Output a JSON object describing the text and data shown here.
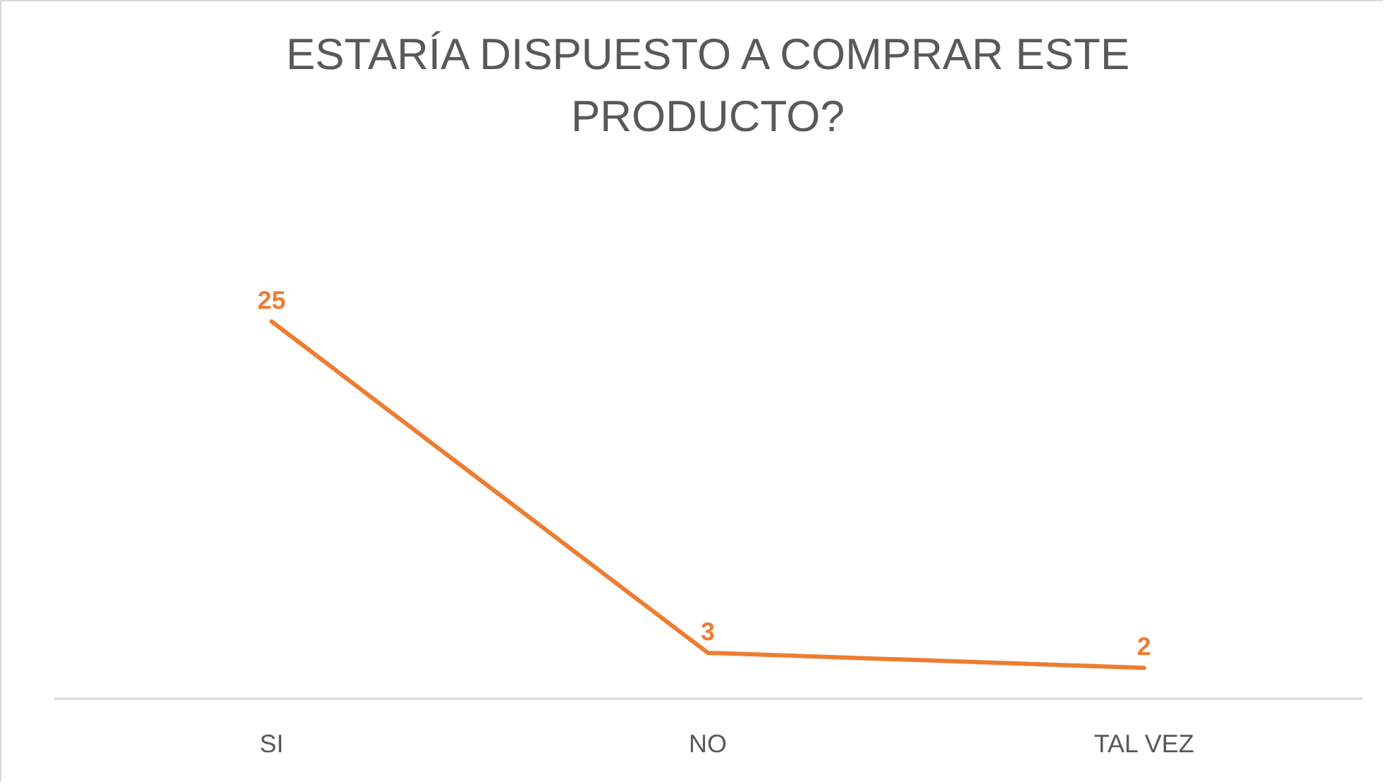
{
  "chart_data": {
    "type": "line",
    "title": "ESTARÍA DISPUESTO A COMPRAR ESTE PRODUCTO?",
    "categories": [
      "SI",
      "NO",
      "TAL VEZ"
    ],
    "series": [
      {
        "color": "#ed7d31",
        "values": [
          25,
          3,
          2
        ]
      }
    ],
    "data_labels": true,
    "marker": "none",
    "line_style": "solid",
    "tick_labels": "x"
  }
}
